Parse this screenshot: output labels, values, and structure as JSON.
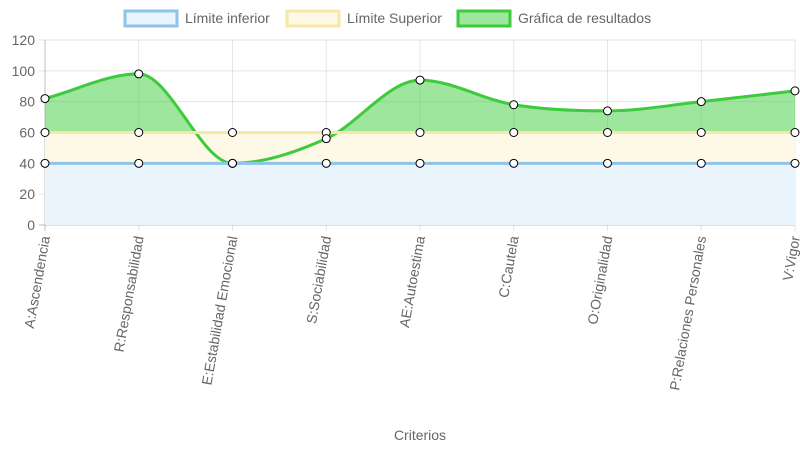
{
  "chart_data": {
    "type": "line",
    "title": "",
    "xlabel": "Criterios",
    "ylabel": "",
    "ylim": [
      0,
      120
    ],
    "yticks": [
      0,
      20,
      40,
      60,
      80,
      100,
      120
    ],
    "grid": true,
    "legend_position": "top-center",
    "categories": [
      "A:Ascendencia",
      "R:Responsabilidad",
      "E:Estabilidad Emocional",
      "S:Sociabilidad",
      "AE:Autoestima",
      "C:Cautela",
      "O:Originalidad",
      "P:Relaciones Personales",
      "V:Vigor"
    ],
    "series": [
      {
        "name": "Límite inferior",
        "values": [
          40,
          40,
          40,
          40,
          40,
          40,
          40,
          40,
          40
        ],
        "color": "#8fc3e8",
        "fill": "#eaf4fc"
      },
      {
        "name": "Límite Superior",
        "values": [
          60,
          60,
          60,
          60,
          60,
          60,
          60,
          60,
          60
        ],
        "color": "#f7e8a6",
        "fill": "#fef9e6"
      },
      {
        "name": "Gráfica de resultados",
        "values": [
          82,
          98,
          40,
          56,
          94,
          78,
          74,
          80,
          87
        ],
        "color": "#3dcb3d",
        "fill": "rgba(61,203,61,0.5)"
      }
    ]
  }
}
